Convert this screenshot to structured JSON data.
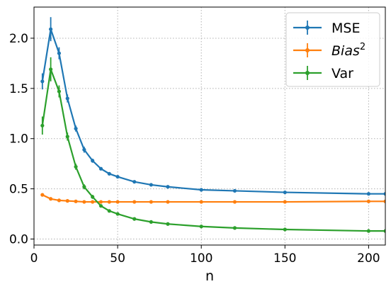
{
  "chart_data": {
    "type": "line",
    "xlabel": "n",
    "ylabel": "",
    "xlim": [
      0,
      210
    ],
    "ylim": [
      -0.06,
      2.31
    ],
    "xticks": [
      0,
      50,
      100,
      150,
      200
    ],
    "yticks": [
      0.0,
      0.5,
      1.0,
      1.5,
      2.0
    ],
    "xtick_labels": [
      "0",
      "50",
      "100",
      "150",
      "200"
    ],
    "ytick_labels": [
      "0.0",
      "0.5",
      "1.0",
      "1.5",
      "2.0"
    ],
    "grid": true,
    "legend_position": "top-right",
    "x": [
      5,
      10,
      15,
      20,
      25,
      30,
      35,
      40,
      45,
      50,
      60,
      70,
      80,
      100,
      120,
      150,
      200,
      210
    ],
    "series": [
      {
        "name": "MSE",
        "color": "#1f77b4",
        "values": [
          1.57,
          2.09,
          1.85,
          1.4,
          1.1,
          0.89,
          0.78,
          0.7,
          0.65,
          0.62,
          0.57,
          0.54,
          0.52,
          0.49,
          0.48,
          0.465,
          0.45,
          0.45
        ],
        "errors": [
          0.08,
          0.12,
          0.06,
          0.04,
          0.03,
          0.03,
          0.02,
          0.015,
          0.012,
          0.01,
          0.008,
          0.007,
          0.006,
          0.005,
          0.005,
          0.004,
          0.004,
          0.0
        ]
      },
      {
        "name": "Bias",
        "name_sup": "2",
        "color": "#ff7f0e",
        "values": [
          0.44,
          0.4,
          0.385,
          0.38,
          0.375,
          0.37,
          0.37,
          0.37,
          0.37,
          0.37,
          0.37,
          0.37,
          0.37,
          0.37,
          0.37,
          0.37,
          0.375,
          0.375
        ],
        "errors": [
          0.01,
          0.008,
          0.005,
          0.004,
          0.003,
          0.003,
          0.002,
          0.002,
          0.002,
          0.002,
          0.002,
          0.002,
          0.002,
          0.002,
          0.002,
          0.002,
          0.002,
          0.0
        ]
      },
      {
        "name": "Var",
        "color": "#2ca02c",
        "values": [
          1.13,
          1.69,
          1.47,
          1.02,
          0.72,
          0.52,
          0.42,
          0.33,
          0.28,
          0.25,
          0.2,
          0.17,
          0.15,
          0.125,
          0.11,
          0.095,
          0.08,
          0.08
        ],
        "errors": [
          0.09,
          0.12,
          0.06,
          0.04,
          0.03,
          0.025,
          0.02,
          0.015,
          0.012,
          0.01,
          0.008,
          0.006,
          0.005,
          0.004,
          0.004,
          0.003,
          0.003,
          0.0
        ]
      }
    ]
  }
}
